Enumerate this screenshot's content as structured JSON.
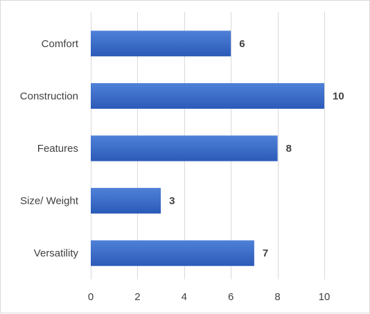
{
  "chart_data": {
    "type": "bar",
    "orientation": "horizontal",
    "categories": [
      "Comfort",
      "Construction",
      "Features",
      "Size/ Weight",
      "Versatility"
    ],
    "values": [
      6,
      10,
      8,
      3,
      7
    ],
    "xlim": [
      0,
      10
    ],
    "x_ticks": [
      0,
      2,
      4,
      6,
      8,
      10
    ],
    "grid": true,
    "legend": "none",
    "bar_color_top": "#4f81d8",
    "bar_color_bottom": "#2b5ab8"
  }
}
